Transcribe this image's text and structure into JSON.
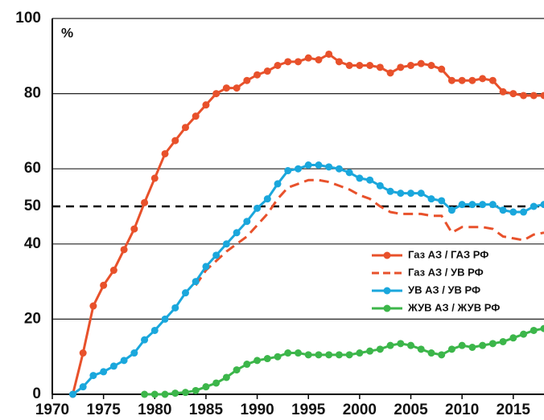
{
  "chart_data": {
    "type": "line",
    "y_label": "%",
    "xlim": [
      1970,
      2018
    ],
    "xticks": [
      1970,
      1975,
      1980,
      1985,
      1990,
      1995,
      2000,
      2005,
      2010,
      2015
    ],
    "ylim": [
      0,
      100
    ],
    "yticks": [
      0,
      20,
      40,
      50,
      60,
      80,
      100
    ],
    "grid": true,
    "reference_line": 50,
    "legend": "right",
    "series": [
      {
        "name": "Газ АЗ / ГАЗ РФ",
        "color": "#e8512b",
        "dash": false,
        "markers": true,
        "x": [
          1972,
          1973,
          1974,
          1975,
          1976,
          1977,
          1978,
          1979,
          1980,
          1981,
          1982,
          1983,
          1984,
          1985,
          1986,
          1987,
          1988,
          1989,
          1990,
          1991,
          1992,
          1993,
          1994,
          1995,
          1996,
          1997,
          1998,
          1999,
          2000,
          2001,
          2002,
          2003,
          2004,
          2005,
          2006,
          2007,
          2008,
          2009,
          2010,
          2011,
          2012,
          2013,
          2014,
          2015,
          2016,
          2017,
          2018
        ],
        "values": [
          0,
          11,
          23.5,
          29,
          33,
          38.5,
          44,
          51,
          57.5,
          64,
          67.5,
          71,
          74,
          77,
          80,
          81.5,
          81.5,
          83.5,
          85,
          86,
          87.5,
          88.5,
          88.5,
          89.5,
          89,
          90.5,
          88.5,
          87.5,
          87.5,
          87.5,
          87,
          85.5,
          87,
          87.5,
          88,
          87.5,
          86.5,
          83.5,
          83.5,
          83.5,
          84,
          83.5,
          80.5,
          80,
          79.5,
          79.5,
          79.5
        ]
      },
      {
        "name": "Газ АЗ / УВ РФ",
        "color": "#e8512b",
        "dash": true,
        "markers": false,
        "x": [
          1984,
          1985,
          1986,
          1987,
          1988,
          1989,
          1990,
          1991,
          1992,
          1993,
          1994,
          1995,
          1996,
          1997,
          1998,
          1999,
          2000,
          2001,
          2002,
          2003,
          2004,
          2005,
          2006,
          2007,
          2008,
          2009,
          2010,
          2011,
          2012,
          2013,
          2014,
          2015,
          2016,
          2017,
          2018
        ],
        "values": [
          29,
          33,
          35.5,
          38,
          40,
          42,
          45,
          48,
          52,
          55,
          56,
          57,
          57,
          56.5,
          55.5,
          54.5,
          53,
          52,
          50,
          48.5,
          48,
          48,
          48,
          47.5,
          47.5,
          43,
          44.5,
          44.5,
          44.5,
          44,
          42,
          41.5,
          41,
          42.5,
          43
        ]
      },
      {
        "name": "УВ АЗ / УВ РФ",
        "color": "#1aa7dc",
        "dash": false,
        "markers": true,
        "x": [
          1972,
          1973,
          1974,
          1975,
          1976,
          1977,
          1978,
          1979,
          1980,
          1981,
          1982,
          1983,
          1984,
          1985,
          1986,
          1987,
          1988,
          1989,
          1990,
          1991,
          1992,
          1993,
          1994,
          1995,
          1996,
          1997,
          1998,
          1999,
          2000,
          2001,
          2002,
          2003,
          2004,
          2005,
          2006,
          2007,
          2008,
          2009,
          2010,
          2011,
          2012,
          2013,
          2014,
          2015,
          2016,
          2017,
          2018
        ],
        "values": [
          0,
          2,
          5,
          6,
          7.5,
          9,
          11,
          14.5,
          17,
          20,
          23,
          27,
          30,
          34,
          37,
          40,
          43,
          46,
          49.5,
          52,
          56,
          59.5,
          60,
          61,
          61,
          60.5,
          60,
          59,
          57.5,
          57,
          55.5,
          54,
          53.5,
          53.5,
          53.5,
          52,
          51.5,
          49,
          50.5,
          50.5,
          50.5,
          50.5,
          49,
          48.5,
          48.5,
          50,
          50.5
        ]
      },
      {
        "name": "ЖУВ АЗ / ЖУВ РФ",
        "color": "#3cb64a",
        "dash": false,
        "markers": true,
        "x": [
          1979,
          1980,
          1981,
          1982,
          1983,
          1984,
          1985,
          1986,
          1987,
          1988,
          1989,
          1990,
          1991,
          1992,
          1993,
          1994,
          1995,
          1996,
          1997,
          1998,
          1999,
          2000,
          2001,
          2002,
          2003,
          2004,
          2005,
          2006,
          2007,
          2008,
          2009,
          2010,
          2011,
          2012,
          2013,
          2014,
          2015,
          2016,
          2017,
          2018
        ],
        "values": [
          0,
          0,
          0,
          0.3,
          0.5,
          1,
          2,
          3,
          4.5,
          6.5,
          8,
          9,
          9.5,
          10,
          11,
          11,
          10.5,
          10.5,
          10.5,
          10.5,
          10.5,
          11,
          11.5,
          12,
          13,
          13.5,
          13,
          12,
          11,
          10.5,
          12,
          13,
          12.5,
          13,
          13.5,
          14,
          15,
          16,
          17,
          17.5
        ]
      }
    ]
  }
}
